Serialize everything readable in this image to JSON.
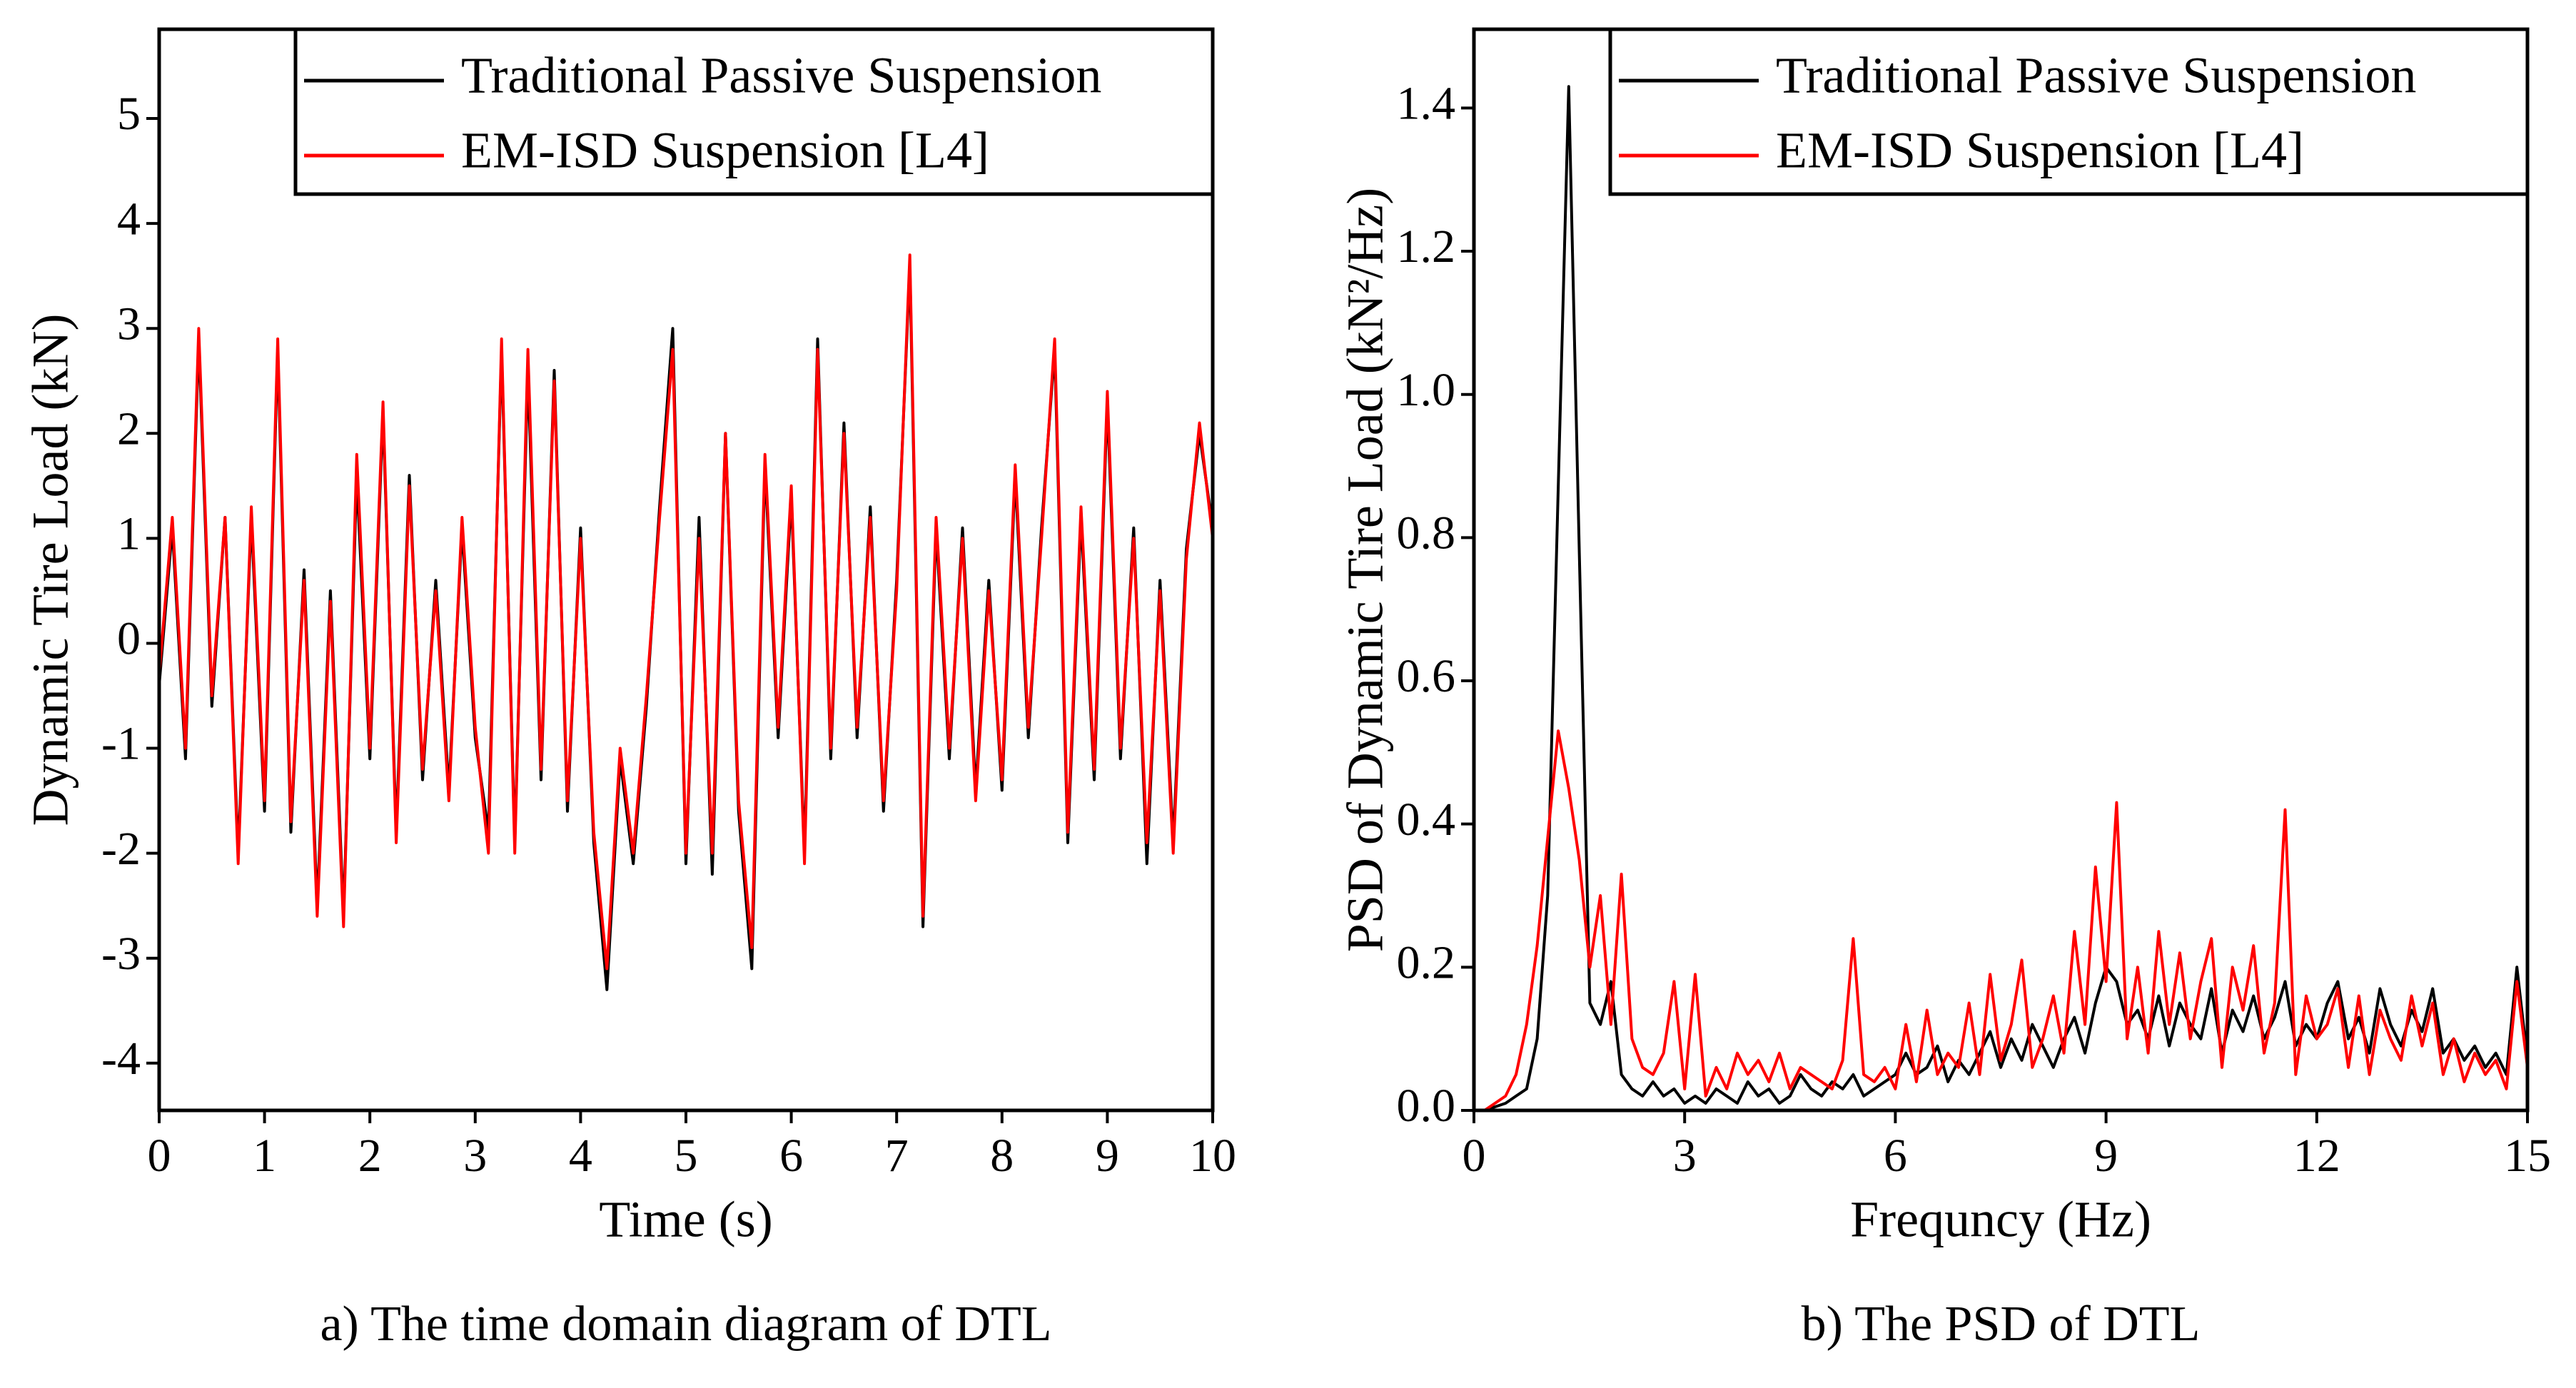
{
  "chart_data": [
    {
      "type": "line",
      "x_label": "Time (s)",
      "y_label": "Dynamic Tire Load (kN)",
      "caption": "a) The time domain diagram of DTL",
      "xlim": [
        0,
        10
      ],
      "ylim": [
        -4.45,
        5.85
      ],
      "xticks": [
        0,
        1,
        2,
        3,
        4,
        5,
        6,
        7,
        8,
        9,
        10
      ],
      "yticks": [
        -4,
        -3,
        -2,
        -1,
        0,
        1,
        2,
        3,
        4,
        5
      ],
      "legend": "upper right",
      "x": [
        0,
        0.125,
        0.25,
        0.375,
        0.5,
        0.625,
        0.75,
        0.875,
        1,
        1.125,
        1.25,
        1.375,
        1.5,
        1.625,
        1.75,
        1.875,
        2,
        2.125,
        2.25,
        2.375,
        2.5,
        2.625,
        2.75,
        2.875,
        3,
        3.125,
        3.25,
        3.375,
        3.5,
        3.625,
        3.75,
        3.875,
        4,
        4.125,
        4.25,
        4.375,
        4.5,
        4.625,
        4.75,
        4.875,
        5,
        5.125,
        5.25,
        5.375,
        5.5,
        5.625,
        5.75,
        5.875,
        6,
        6.125,
        6.25,
        6.375,
        6.5,
        6.625,
        6.75,
        6.875,
        7,
        7.125,
        7.25,
        7.375,
        7.5,
        7.625,
        7.75,
        7.875,
        8,
        8.125,
        8.25,
        8.375,
        8.5,
        8.625,
        8.75,
        8.875,
        9,
        9.125,
        9.25,
        9.375,
        9.5,
        9.625,
        9.75,
        9.875,
        10
      ],
      "series": [
        {
          "name": "Traditional Passive Suspension",
          "color": "#000000",
          "values": [
            -0.4,
            1.1,
            -1.1,
            2.9,
            -0.6,
            1.2,
            -2.0,
            1.2,
            -1.6,
            2.8,
            -1.8,
            0.7,
            -2.5,
            0.5,
            -2.6,
            1.6,
            -1.1,
            2.2,
            -1.8,
            1.6,
            -1.3,
            0.6,
            -1.4,
            1.1,
            -0.9,
            -1.8,
            2.8,
            -1.9,
            2.6,
            -1.3,
            2.6,
            -1.6,
            1.1,
            -1.9,
            -3.3,
            -1.1,
            -2.1,
            -0.6,
            1.3,
            3.0,
            -2.1,
            1.2,
            -2.2,
            2.0,
            -1.6,
            -3.1,
            1.7,
            -0.9,
            1.4,
            -2.0,
            2.9,
            -1.1,
            2.1,
            -0.9,
            1.3,
            -1.6,
            0.6,
            3.6,
            -2.7,
            1.1,
            -1.1,
            1.1,
            -1.4,
            0.6,
            -1.4,
            1.6,
            -0.9,
            1.1,
            2.8,
            -1.9,
            1.2,
            -1.3,
            2.3,
            -1.1,
            1.1,
            -2.1,
            0.6,
            -1.9,
            0.9,
            2.0,
            1.1
          ]
        },
        {
          "name": "EM-ISD Suspension [L4]",
          "color": "#ff0000",
          "values": [
            -0.3,
            1.2,
            -1.0,
            3.0,
            -0.5,
            1.2,
            -2.1,
            1.3,
            -1.5,
            2.9,
            -1.7,
            0.6,
            -2.6,
            0.4,
            -2.7,
            1.8,
            -1.0,
            2.3,
            -1.9,
            1.5,
            -1.2,
            0.5,
            -1.5,
            1.2,
            -0.8,
            -2.0,
            2.9,
            -2.0,
            2.8,
            -1.2,
            2.5,
            -1.5,
            1.0,
            -1.8,
            -3.1,
            -1.0,
            -2.0,
            -0.5,
            1.2,
            2.8,
            -2.0,
            1.0,
            -2.0,
            2.0,
            -1.5,
            -2.9,
            1.8,
            -0.8,
            1.5,
            -2.1,
            2.8,
            -1.0,
            2.0,
            -0.8,
            1.2,
            -1.5,
            0.5,
            3.7,
            -2.6,
            1.2,
            -1.0,
            1.0,
            -1.5,
            0.5,
            -1.3,
            1.7,
            -0.8,
            1.0,
            2.9,
            -1.8,
            1.3,
            -1.2,
            2.4,
            -1.0,
            1.0,
            -1.9,
            0.5,
            -2.0,
            0.8,
            2.1,
            1.0
          ]
        }
      ]
    },
    {
      "type": "line",
      "x_label": "Frequncy (Hz)",
      "y_label": "PSD of Dynamic Tire Load (kN²/Hz)",
      "caption": "b) The PSD of DTL",
      "xlim": [
        0,
        15
      ],
      "ylim": [
        0,
        1.51
      ],
      "xticks": [
        0,
        3,
        6,
        9,
        12,
        15
      ],
      "yticks": [
        {
          "value": 0,
          "label": "0.0"
        },
        0.2,
        0.4,
        0.6,
        0.8,
        {
          "value": 1,
          "label": "1.0"
        },
        1.2,
        1.4
      ],
      "legend": "upper right",
      "x": [
        0,
        0.15,
        0.3,
        0.45,
        0.6,
        0.75,
        0.9,
        1.05,
        1.2,
        1.35,
        1.5,
        1.65,
        1.8,
        1.95,
        2.1,
        2.25,
        2.4,
        2.55,
        2.7,
        2.85,
        3,
        3.15,
        3.3,
        3.45,
        3.6,
        3.75,
        3.9,
        4.05,
        4.2,
        4.35,
        4.5,
        4.65,
        4.8,
        4.95,
        5.1,
        5.25,
        5.4,
        5.55,
        5.7,
        5.85,
        6,
        6.15,
        6.3,
        6.45,
        6.6,
        6.75,
        6.9,
        7.05,
        7.2,
        7.35,
        7.5,
        7.65,
        7.8,
        7.95,
        8.1,
        8.25,
        8.4,
        8.55,
        8.7,
        8.85,
        9,
        9.15,
        9.3,
        9.45,
        9.6,
        9.75,
        9.9,
        10.05,
        10.2,
        10.35,
        10.5,
        10.65,
        10.8,
        10.95,
        11.1,
        11.25,
        11.4,
        11.55,
        11.7,
        11.85,
        12,
        12.15,
        12.3,
        12.45,
        12.6,
        12.75,
        12.9,
        13.05,
        13.2,
        13.35,
        13.5,
        13.65,
        13.8,
        13.95,
        14.1,
        14.25,
        14.4,
        14.55,
        14.7,
        14.85,
        15
      ],
      "series": [
        {
          "name": "Traditional Passive Suspension",
          "color": "#000000",
          "values": [
            0,
            0,
            0.005,
            0.01,
            0.02,
            0.03,
            0.1,
            0.3,
            0.87,
            1.43,
            0.78,
            0.15,
            0.12,
            0.18,
            0.05,
            0.03,
            0.02,
            0.04,
            0.02,
            0.03,
            0.01,
            0.02,
            0.01,
            0.03,
            0.02,
            0.01,
            0.04,
            0.02,
            0.03,
            0.01,
            0.02,
            0.05,
            0.03,
            0.02,
            0.04,
            0.03,
            0.05,
            0.02,
            0.03,
            0.04,
            0.05,
            0.08,
            0.05,
            0.06,
            0.09,
            0.04,
            0.07,
            0.05,
            0.08,
            0.11,
            0.06,
            0.1,
            0.07,
            0.12,
            0.09,
            0.06,
            0.1,
            0.13,
            0.08,
            0.15,
            0.2,
            0.18,
            0.12,
            0.14,
            0.1,
            0.16,
            0.09,
            0.15,
            0.12,
            0.1,
            0.17,
            0.08,
            0.14,
            0.11,
            0.16,
            0.1,
            0.13,
            0.18,
            0.09,
            0.12,
            0.1,
            0.15,
            0.18,
            0.1,
            0.13,
            0.08,
            0.17,
            0.12,
            0.09,
            0.14,
            0.11,
            0.17,
            0.08,
            0.1,
            0.07,
            0.09,
            0.06,
            0.08,
            0.05,
            0.2,
            0.07
          ]
        },
        {
          "name": "EM-ISD Suspension [L4]",
          "color": "#ff0000",
          "values": [
            0,
            0,
            0.01,
            0.02,
            0.05,
            0.12,
            0.23,
            0.38,
            0.53,
            0.45,
            0.35,
            0.2,
            0.3,
            0.12,
            0.33,
            0.1,
            0.06,
            0.05,
            0.08,
            0.18,
            0.03,
            0.19,
            0.02,
            0.06,
            0.03,
            0.08,
            0.05,
            0.07,
            0.04,
            0.08,
            0.03,
            0.06,
            0.05,
            0.04,
            0.03,
            0.07,
            0.24,
            0.05,
            0.04,
            0.06,
            0.03,
            0.12,
            0.04,
            0.14,
            0.05,
            0.08,
            0.06,
            0.15,
            0.05,
            0.19,
            0.07,
            0.12,
            0.21,
            0.06,
            0.1,
            0.16,
            0.08,
            0.25,
            0.12,
            0.34,
            0.18,
            0.43,
            0.1,
            0.2,
            0.08,
            0.25,
            0.12,
            0.22,
            0.1,
            0.18,
            0.24,
            0.06,
            0.2,
            0.14,
            0.23,
            0.08,
            0.15,
            0.42,
            0.05,
            0.16,
            0.1,
            0.12,
            0.17,
            0.06,
            0.16,
            0.05,
            0.14,
            0.1,
            0.07,
            0.16,
            0.09,
            0.15,
            0.05,
            0.1,
            0.04,
            0.08,
            0.05,
            0.07,
            0.03,
            0.18,
            0.06
          ]
        }
      ]
    }
  ]
}
